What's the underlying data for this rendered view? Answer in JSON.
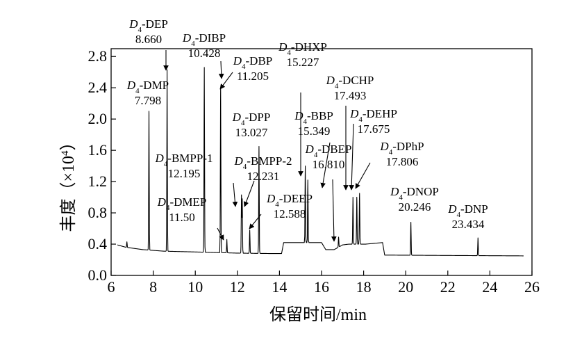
{
  "chart_data": {
    "type": "line",
    "title": "",
    "xlabel": "保留时间/min",
    "ylabel": "丰度（×10⁴）",
    "ylabel_parts": {
      "main": "丰度（×10",
      "exp": "4",
      "close": "）"
    },
    "xlim": [
      6,
      26
    ],
    "ylim": [
      0,
      2.9
    ],
    "xticks": [
      "6",
      "8",
      "10",
      "12",
      "14",
      "16",
      "18",
      "20",
      "22",
      "24",
      "26"
    ],
    "yticks": [
      "0.0",
      "0.4",
      "0.8",
      "1.2",
      "1.6",
      "2.0",
      "2.4",
      "2.8"
    ],
    "grid": false,
    "series": [
      {
        "baseline": [
          [
            6.3,
            0.39
          ],
          [
            6.7,
            0.36
          ],
          [
            7.5,
            0.33
          ],
          [
            8.5,
            0.31
          ],
          [
            10,
            0.3
          ],
          [
            12,
            0.285
          ],
          [
            13.5,
            0.28
          ],
          [
            14.1,
            0.28
          ],
          [
            14.2,
            0.42
          ],
          [
            16.0,
            0.42
          ],
          [
            16.2,
            0.33
          ],
          [
            16.6,
            0.33
          ],
          [
            17.0,
            0.39
          ],
          [
            17.3,
            0.4
          ],
          [
            18.1,
            0.4
          ],
          [
            18.9,
            0.42
          ],
          [
            19.0,
            0.26
          ],
          [
            22,
            0.255
          ],
          [
            25.6,
            0.25
          ]
        ],
        "peaks": [
          [
            6.75,
            0.43
          ],
          [
            7.798,
            2.1
          ],
          [
            8.66,
            2.63
          ],
          [
            10.428,
            2.66
          ],
          [
            11.205,
            2.4
          ],
          [
            11.5,
            0.46
          ],
          [
            12.195,
            1.03
          ],
          [
            12.231,
            0.98
          ],
          [
            12.588,
            0.58
          ],
          [
            13.027,
            1.65
          ],
          [
            15.227,
            1.4
          ],
          [
            15.349,
            1.22
          ],
          [
            16.81,
            0.49
          ],
          [
            17.493,
            1.0
          ],
          [
            17.675,
            1.0
          ],
          [
            17.806,
            1.05
          ],
          [
            20.246,
            0.68
          ],
          [
            23.434,
            0.48
          ]
        ]
      }
    ],
    "annotations": [
      {
        "name": "DEP",
        "rt": "8.660"
      },
      {
        "name": "DIBP",
        "rt": "10.428"
      },
      {
        "name": "DBP",
        "rt": "11.205"
      },
      {
        "name": "DMP",
        "rt": "7.798"
      },
      {
        "name": "DHXP",
        "rt": "15.227"
      },
      {
        "name": "DCHP",
        "rt": "17.493"
      },
      {
        "name": "DPP",
        "rt": "13.027"
      },
      {
        "name": "BBP",
        "rt": "15.349"
      },
      {
        "name": "DEHP",
        "rt": "17.675"
      },
      {
        "name": "BMPP-1",
        "rt": "12.195"
      },
      {
        "name": "BMPP-2",
        "rt": "12.231"
      },
      {
        "name": "DBEP",
        "rt": "16.810"
      },
      {
        "name": "DPhP",
        "rt": "17.806"
      },
      {
        "name": "DMEP",
        "rt": "11.50"
      },
      {
        "name": "DEEP",
        "rt": "12.588"
      },
      {
        "name": "DNOP",
        "rt": "20.246"
      },
      {
        "name": "DNP",
        "rt": "23.434"
      }
    ],
    "label_prefix": "D",
    "label_prefix_sub": "4"
  }
}
